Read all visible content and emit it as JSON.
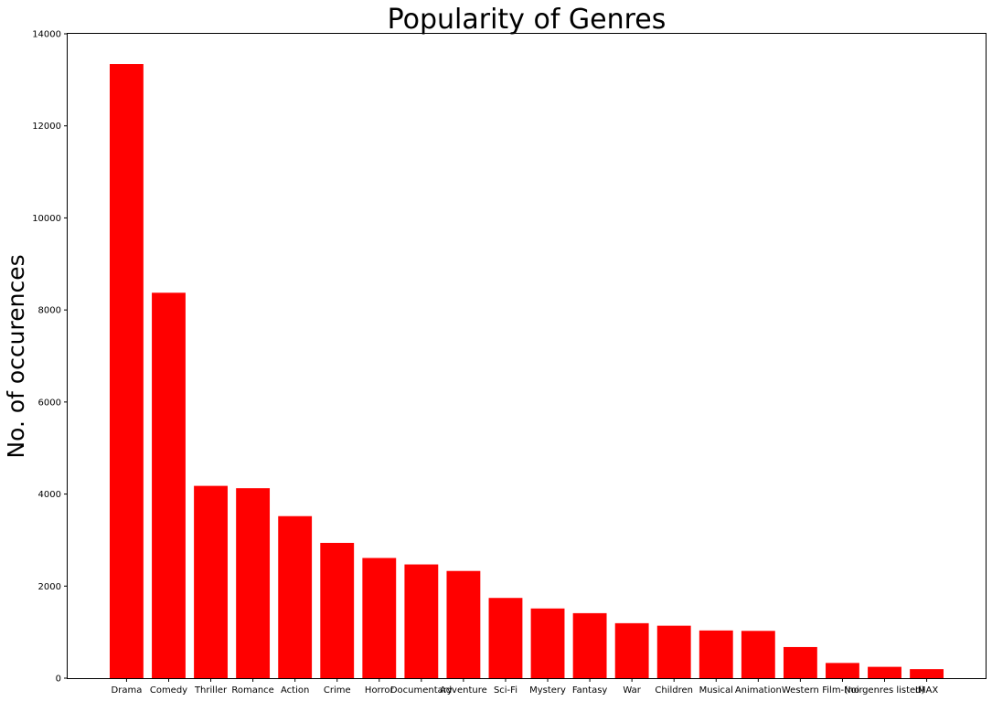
{
  "chart_data": {
    "type": "bar",
    "title": "Popularity of Genres",
    "xlabel": "",
    "ylabel": "No. of occurences",
    "ylim": [
      0,
      14000
    ],
    "yticks": [
      0,
      2000,
      4000,
      6000,
      8000,
      10000,
      12000,
      14000
    ],
    "grid": false,
    "bar_color": "#ff0000",
    "categories": [
      "Drama",
      "Comedy",
      "Thriller",
      "Romance",
      "Action",
      "Crime",
      "Horror",
      "Documentary",
      "Adventure",
      "Sci-Fi",
      "Mystery",
      "Fantasy",
      "War",
      "Children",
      "Musical",
      "Animation",
      "Western",
      "Film-Noir",
      "(no genres listed)",
      "IMAX"
    ],
    "values": [
      13344,
      8374,
      4178,
      4127,
      3520,
      2939,
      2611,
      2471,
      2329,
      1743,
      1514,
      1412,
      1194,
      1139,
      1036,
      1027,
      676,
      330,
      246,
      196
    ]
  }
}
